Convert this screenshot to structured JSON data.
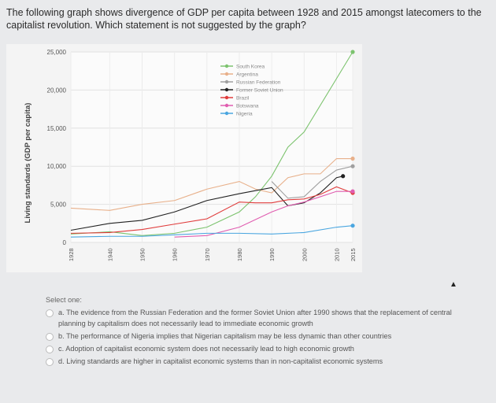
{
  "question": "The following graph shows divergence of GDP per capita between 1928 and 2015 amongst latecomers to the capitalist revolution. Which statement is not suggested by the graph?",
  "select_label": "Select one:",
  "options": [
    {
      "letter": "a.",
      "text": "The evidence from the Russian Federation and the former Soviet Union after 1990 shows that the replacement of central planning by capitalism does not necessarily lead to immediate economic growth"
    },
    {
      "letter": "b.",
      "text": "The performance of Nigeria implies that Nigerian capitalism may be less dynamic than other countries"
    },
    {
      "letter": "c.",
      "text": "Adoption of capitalist economic system does not necessarily lead to high economic growth"
    },
    {
      "letter": "d.",
      "text": "Living standards are higher in capitalist economic systems than in non-capitalist economic systems"
    }
  ],
  "colors": {
    "south_korea": "#7cc36e",
    "argentina": "#e8b08a",
    "russia": "#a0a0a0",
    "soviet": "#222222",
    "brazil": "#e03c3c",
    "botswana": "#e05db0",
    "nigeria": "#4aa6e0"
  },
  "chart_data": {
    "type": "line",
    "ylabel": "Living standards (GDP per capita)",
    "xlabel": "",
    "ylim": [
      0,
      25000
    ],
    "yticks": [
      "0",
      "5,000",
      "10,000",
      "15,000",
      "20,000",
      "25,000"
    ],
    "xticks": [
      "1928",
      "1940",
      "1950",
      "1960",
      "1970",
      "1980",
      "1990",
      "2000",
      "2010",
      "2015"
    ],
    "grid": true,
    "legend_position": "top-right",
    "series": [
      {
        "name": "South Korea",
        "color_key": "south_korea",
        "x": [
          1928,
          1940,
          1950,
          1960,
          1970,
          1980,
          1985,
          1990,
          1995,
          2000,
          2005,
          2010,
          2015
        ],
        "y": [
          1100,
          1400,
          900,
          1200,
          2000,
          4000,
          6000,
          8700,
          12500,
          14500,
          18000,
          21500,
          25000
        ]
      },
      {
        "name": "Argentina",
        "color_key": "argentina",
        "x": [
          1928,
          1940,
          1950,
          1960,
          1970,
          1980,
          1985,
          1990,
          1995,
          2000,
          2005,
          2010,
          2015
        ],
        "y": [
          4500,
          4200,
          5000,
          5500,
          7000,
          8000,
          7000,
          6500,
          8500,
          9000,
          9000,
          11000,
          11000
        ]
      },
      {
        "name": "Russian Federation",
        "color_key": "russia",
        "x": [
          1990,
          1995,
          2000,
          2005,
          2010,
          2015
        ],
        "y": [
          8000,
          5800,
          6000,
          8000,
          9500,
          10000
        ]
      },
      {
        "name": "Former Soviet Union",
        "color_key": "soviet",
        "x": [
          1928,
          1940,
          1950,
          1960,
          1970,
          1980,
          1985,
          1990,
          1995,
          2000,
          2005,
          2010,
          2012
        ],
        "y": [
          1600,
          2500,
          2900,
          4000,
          5500,
          6400,
          6800,
          7200,
          4800,
          5200,
          6500,
          8500,
          8700
        ]
      },
      {
        "name": "Brazil",
        "color_key": "brazil",
        "x": [
          1928,
          1940,
          1950,
          1960,
          1970,
          1980,
          1985,
          1990,
          1995,
          2000,
          2005,
          2010,
          2015
        ],
        "y": [
          1200,
          1300,
          1700,
          2400,
          3100,
          5300,
          5200,
          5200,
          5600,
          5700,
          6300,
          7300,
          6500
        ]
      },
      {
        "name": "Botswana",
        "color_key": "botswana",
        "x": [
          1960,
          1970,
          1980,
          1990,
          1995,
          2000,
          2005,
          2010,
          2015
        ],
        "y": [
          700,
          900,
          2000,
          4000,
          4800,
          5300,
          6000,
          6700,
          6700
        ]
      },
      {
        "name": "Nigeria",
        "color_key": "nigeria",
        "x": [
          1928,
          1940,
          1950,
          1960,
          1970,
          1980,
          1990,
          2000,
          2010,
          2015
        ],
        "y": [
          700,
          800,
          800,
          1000,
          1200,
          1200,
          1100,
          1300,
          2000,
          2200
        ]
      }
    ]
  }
}
